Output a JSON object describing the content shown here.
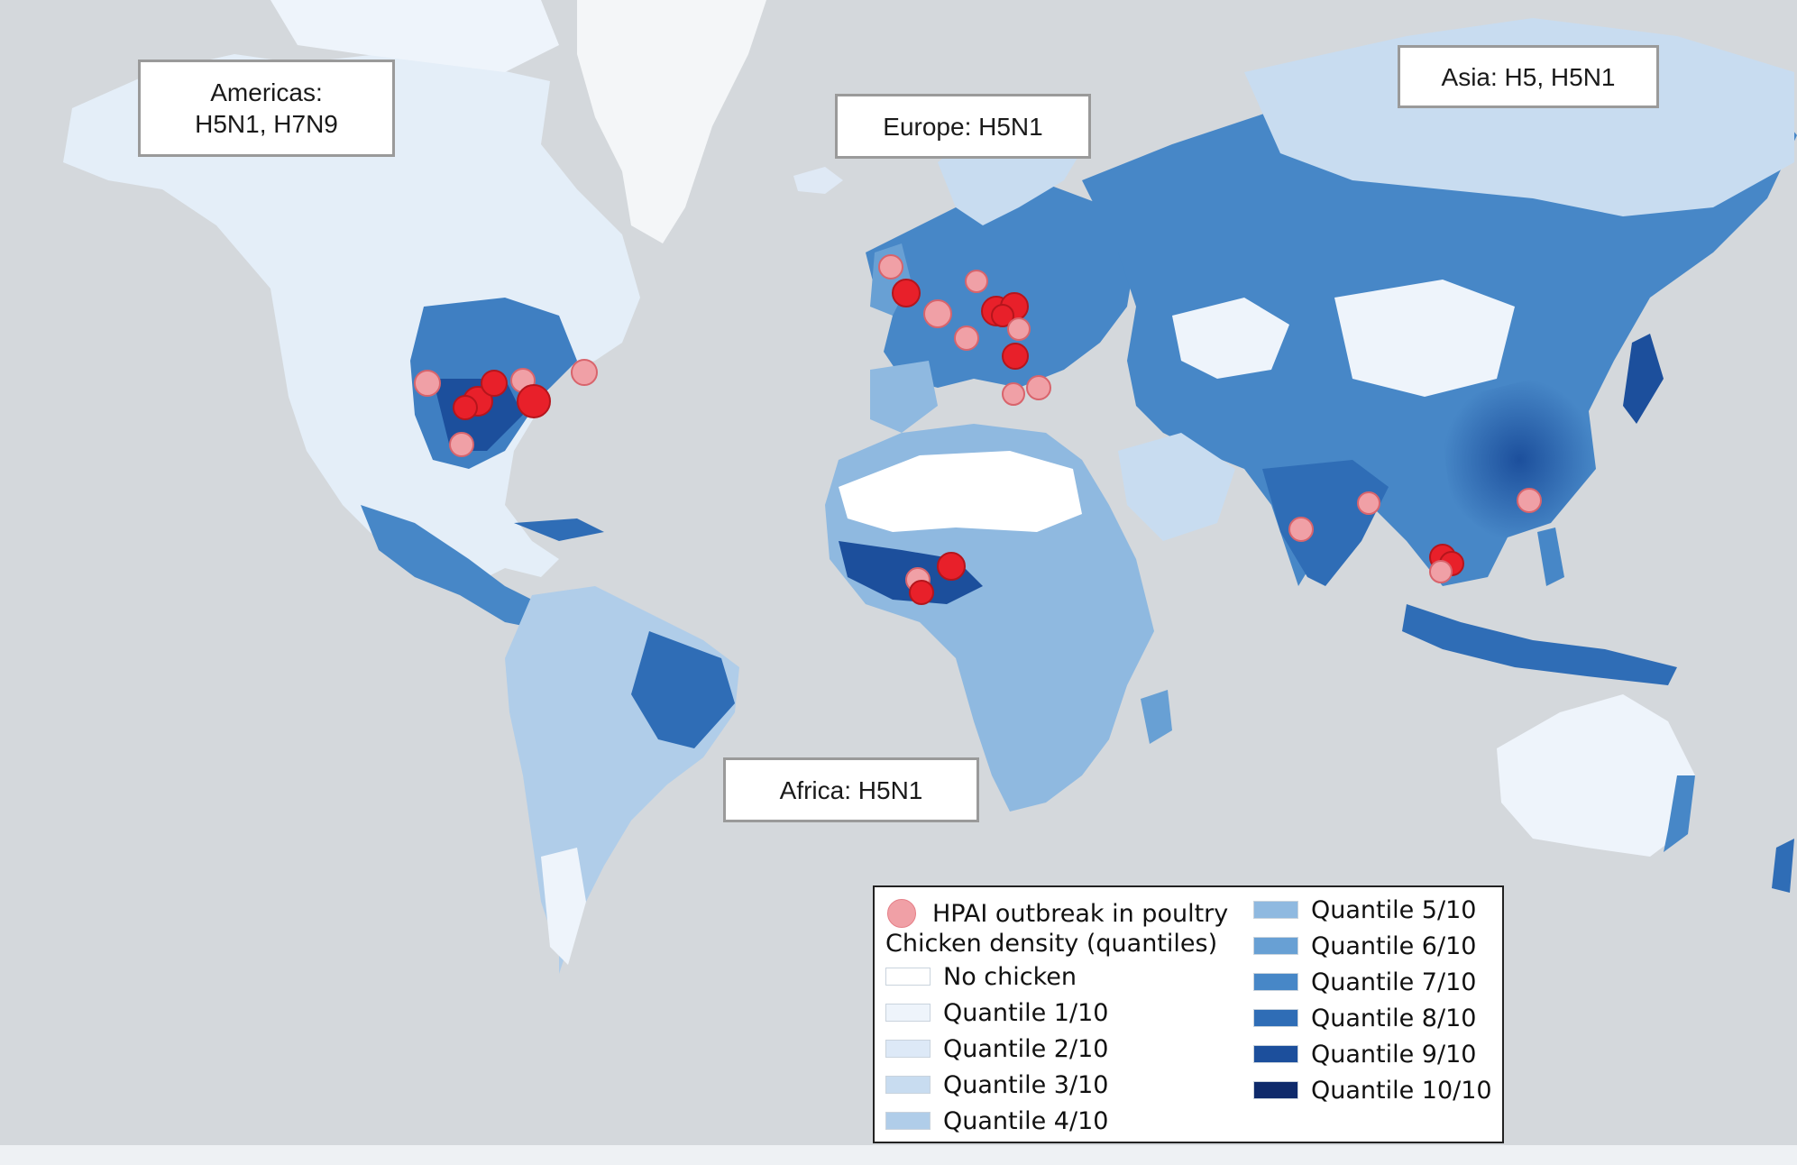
{
  "region_labels": {
    "americas": "Americas:\nH5N1, H7N9",
    "europe": "Europe: H5N1",
    "asia": "Asia: H5, H5N1",
    "africa": "Africa: H5N1"
  },
  "legend": {
    "outbreak_label": "HPAI outbreak in poultry",
    "density_title": "Chicken density (quantiles)",
    "classes": [
      {
        "label": "No chicken",
        "color": "#ffffff"
      },
      {
        "label": "Quantile 1/10",
        "color": "#eef4fb"
      },
      {
        "label": "Quantile 2/10",
        "color": "#dde9f7"
      },
      {
        "label": "Quantile 3/10",
        "color": "#c8dcf0"
      },
      {
        "label": "Quantile 4/10",
        "color": "#b0cde9"
      },
      {
        "label": "Quantile 5/10",
        "color": "#8fb9e0"
      },
      {
        "label": "Quantile 6/10",
        "color": "#68a0d4"
      },
      {
        "label": "Quantile 7/10",
        "color": "#4787c7"
      },
      {
        "label": "Quantile 8/10",
        "color": "#2f6db6"
      },
      {
        "label": "Quantile 9/10",
        "color": "#1c4f9c"
      },
      {
        "label": "Quantile 10/10",
        "color": "#0e2a6b"
      }
    ]
  },
  "colors": {
    "ocean": "#d4d8dc",
    "outbreak_fill": "#e8202a",
    "outbreak_light": "#f0a0a6"
  }
}
